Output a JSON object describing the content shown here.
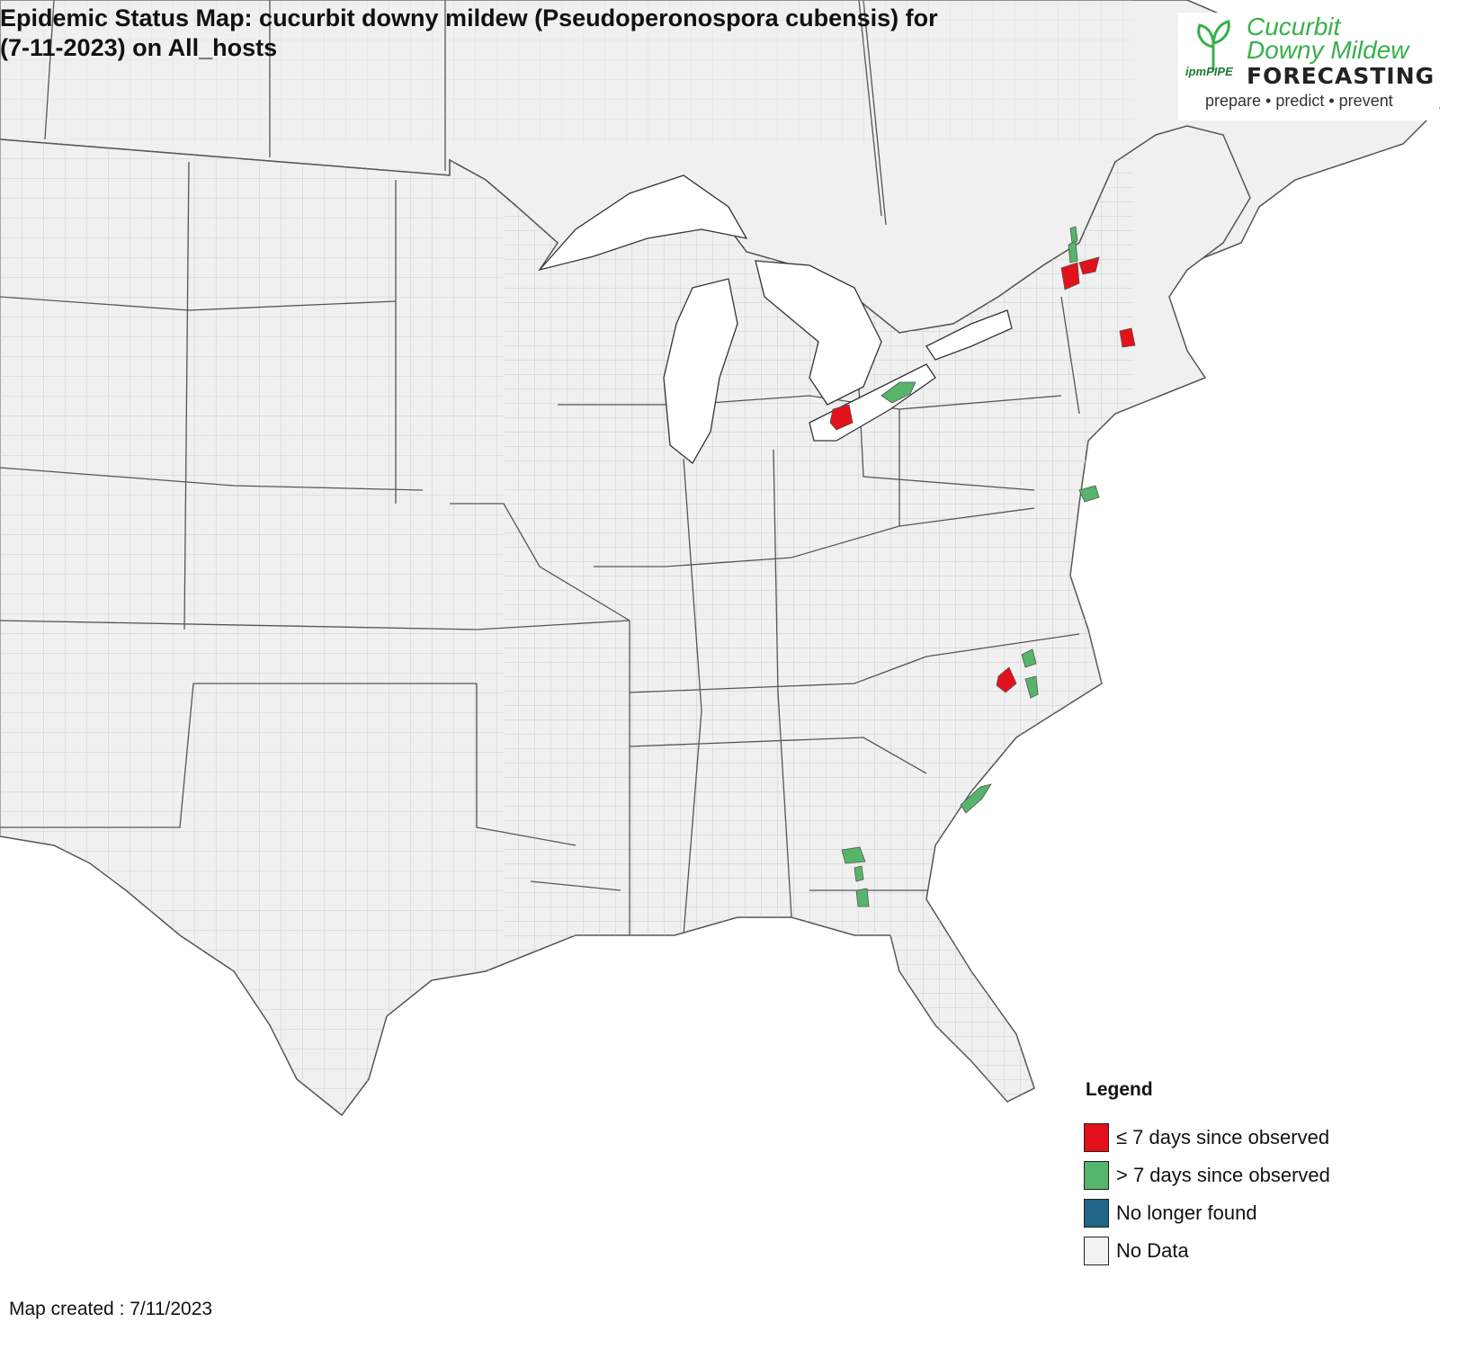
{
  "title": {
    "line1": "Epidemic Status Map: cucurbit downy mildew (Pseudoperonospora cubensis) for",
    "line2": "(7-11-2023) on All_hosts"
  },
  "logo": {
    "line1": "Cucurbit",
    "line2": "Downy Mildew",
    "ipm": "ipmPIPE",
    "forecasting": "FORECASTING",
    "tagline": "prepare • predict • prevent"
  },
  "legend": {
    "title": "Legend",
    "items": [
      {
        "label": "≤ 7 days since observed",
        "color": "#e3111b",
        "icon": "swatch-red"
      },
      {
        "label": "> 7 days since observed",
        "color": "#55b56a",
        "icon": "swatch-green"
      },
      {
        "label": "No longer found",
        "color": "#1f6585",
        "icon": "swatch-teal"
      },
      {
        "label": "No Data",
        "color": "#f2f2f2",
        "icon": "swatch-light"
      }
    ]
  },
  "footer": {
    "map_created": "Map created : 7/11/2023"
  },
  "colors": {
    "land": "#f0f0f0",
    "water": "#ffffff",
    "county_border": "#bdbdbd",
    "state_border": "#555555",
    "recent": "#e3111b",
    "older": "#55b56a"
  }
}
